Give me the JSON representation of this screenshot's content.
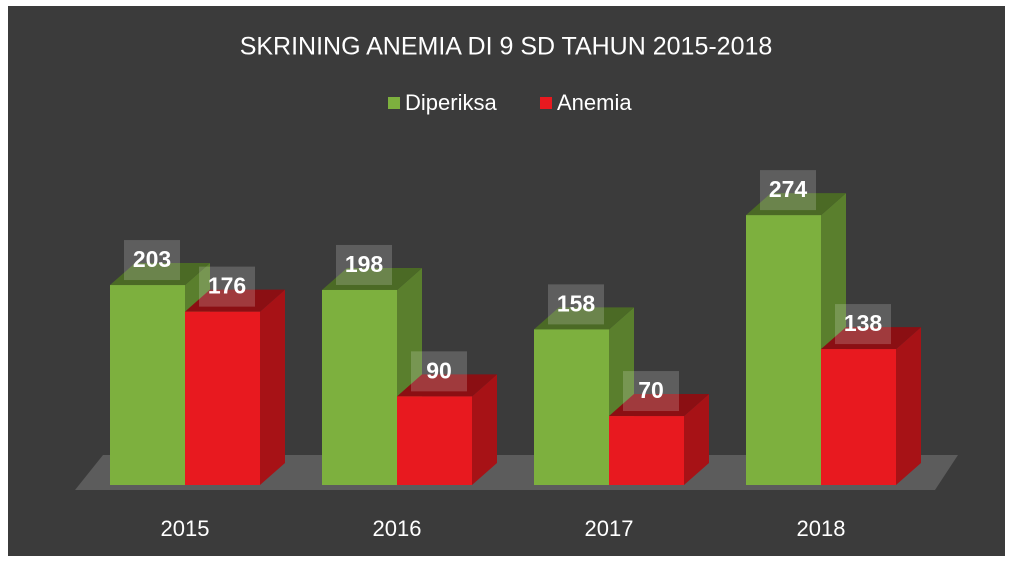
{
  "chart_data": {
    "type": "bar3d",
    "title": "SKRINING ANEMIA DI 9 SD TAHUN 2015-2018",
    "categories": [
      "2015",
      "2016",
      "2017",
      "2018"
    ],
    "series": [
      {
        "name": "Diperiksa",
        "color": "#7db03e",
        "values": [
          203,
          198,
          158,
          274
        ]
      },
      {
        "name": "Anemia",
        "color": "#e8191f",
        "values": [
          176,
          90,
          70,
          138
        ]
      }
    ],
    "legend": "top"
  }
}
